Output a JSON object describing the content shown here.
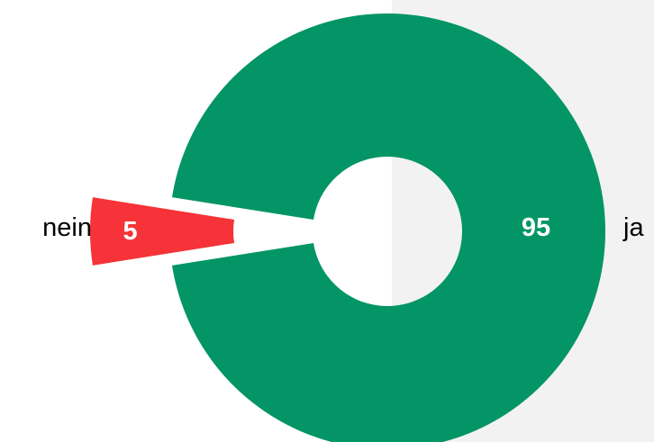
{
  "chart_data": {
    "type": "pie",
    "donut": true,
    "categories": [
      "ja",
      "nein"
    ],
    "values": [
      95,
      5
    ],
    "data_labels": [
      "95",
      "5"
    ],
    "colors": [
      "#039565",
      "#f53338"
    ],
    "exploded": [
      "nein"
    ],
    "title": "",
    "legend": "none"
  },
  "colors": {
    "background": "#ffffff",
    "backdrop_panel": "#f2f2f2",
    "label_on_slice": "#ffffff",
    "category_label": "#000000"
  }
}
